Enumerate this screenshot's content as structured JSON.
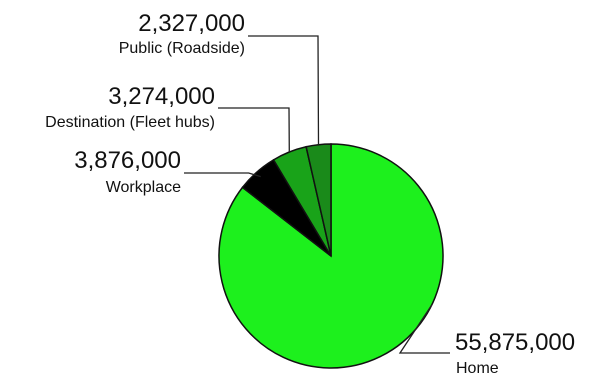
{
  "chart_data": {
    "type": "pie",
    "title": "",
    "start_angle_deg": 0,
    "direction": "clockwise",
    "slices": [
      {
        "label": "Home",
        "value": 55875000,
        "value_text": "55,875,000",
        "color": "#1df01d"
      },
      {
        "label": "Workplace",
        "value": 3876000,
        "value_text": "3,876,000",
        "color": "#000000"
      },
      {
        "label": "Destination (Fleet hubs)",
        "value": 3274000,
        "value_text": "3,274,000",
        "color": "#19a319"
      },
      {
        "label": "Public (Roadside)",
        "value": 2327000,
        "value_text": "2,327,000",
        "color": "#1a8a1a"
      }
    ]
  }
}
